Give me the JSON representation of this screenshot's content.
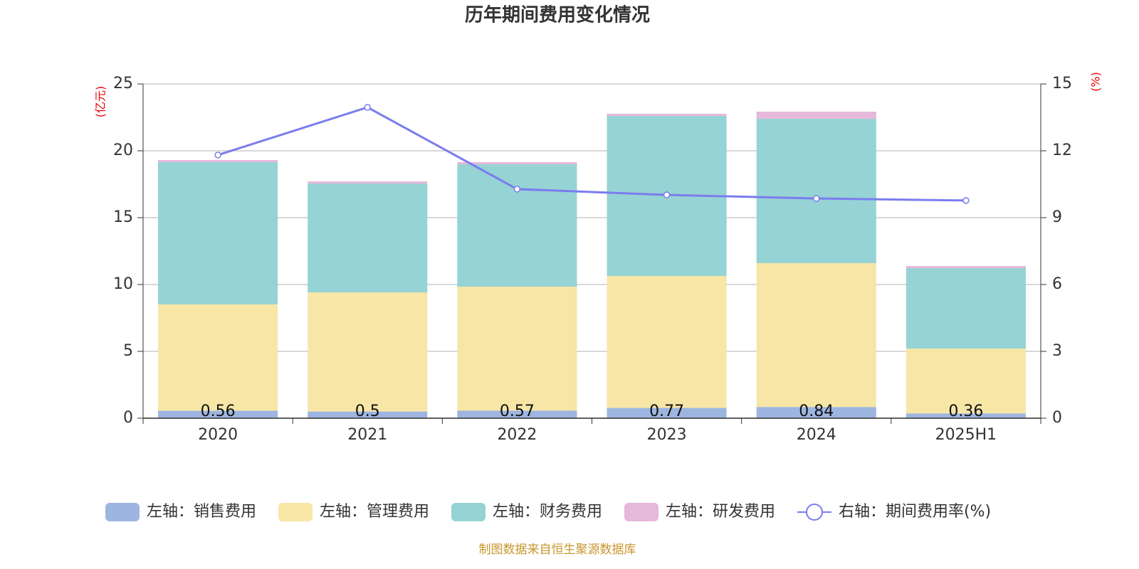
{
  "chart_data": {
    "type": "bar",
    "title": "历年期间费用变化情况",
    "stacked": true,
    "categories": [
      "2020",
      "2021",
      "2022",
      "2023",
      "2024",
      "2025H1"
    ],
    "y_label": "(亿元)",
    "y2_label": "(%)",
    "ylim": [
      0,
      25
    ],
    "yticks": [
      0,
      5,
      10,
      15,
      20,
      25
    ],
    "y2lim": [
      0,
      15
    ],
    "y2ticks": [
      0,
      3,
      6,
      9,
      12,
      15
    ],
    "grid": true,
    "series": [
      {
        "name": "左轴：销售费用",
        "color": "#9db5e0",
        "values": [
          0.56,
          0.5,
          0.57,
          0.77,
          0.84,
          0.36
        ],
        "data_labels": true
      },
      {
        "name": "左轴：管理费用",
        "color": "#f7e6a6",
        "values": [
          7.95,
          8.91,
          9.27,
          9.87,
          10.76,
          4.85
        ]
      },
      {
        "name": "左轴：财务费用",
        "color": "#96d3d4",
        "values": [
          10.64,
          8.14,
          9.15,
          11.97,
          10.79,
          6.01
        ]
      },
      {
        "name": "左轴：研发费用",
        "color": "#e6b8da",
        "values": [
          0.16,
          0.16,
          0.16,
          0.16,
          0.54,
          0.16
        ]
      },
      {
        "name": "右轴：期间费用率(%)",
        "color": "#7b7cee",
        "type": "line",
        "axis": "y2",
        "values": [
          11.81,
          13.95,
          10.28,
          10.02,
          9.86,
          9.77
        ]
      }
    ],
    "source": "制图数据来自恒生聚源数据库"
  }
}
